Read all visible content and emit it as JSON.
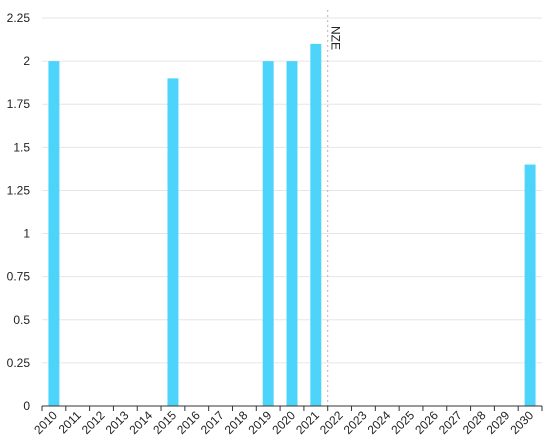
{
  "chart_data": {
    "type": "bar",
    "categories": [
      "2010",
      "2011",
      "2012",
      "2013",
      "2014",
      "2015",
      "2016",
      "2017",
      "2018",
      "2019",
      "2020",
      "2021",
      "2022",
      "2023",
      "2024",
      "2025",
      "2026",
      "2027",
      "2028",
      "2029",
      "2030"
    ],
    "values": [
      2.0,
      null,
      null,
      null,
      null,
      1.9,
      null,
      null,
      null,
      2.0,
      2.0,
      2.1,
      null,
      null,
      null,
      null,
      null,
      null,
      null,
      null,
      1.4
    ],
    "ylim": [
      0,
      2.25
    ],
    "yticks": [
      0,
      0.25,
      0.5,
      0.75,
      1,
      1.25,
      1.5,
      1.75,
      2,
      2.25
    ],
    "ytick_labels": [
      "0",
      "0.25",
      "0.5",
      "0.75",
      "1",
      "1.25",
      "1.5",
      "1.75",
      "2",
      "2.25"
    ],
    "grid": true,
    "bar_color": "#4dd4fb",
    "reference_line": {
      "after_category": "2021",
      "label": "NZE"
    }
  }
}
